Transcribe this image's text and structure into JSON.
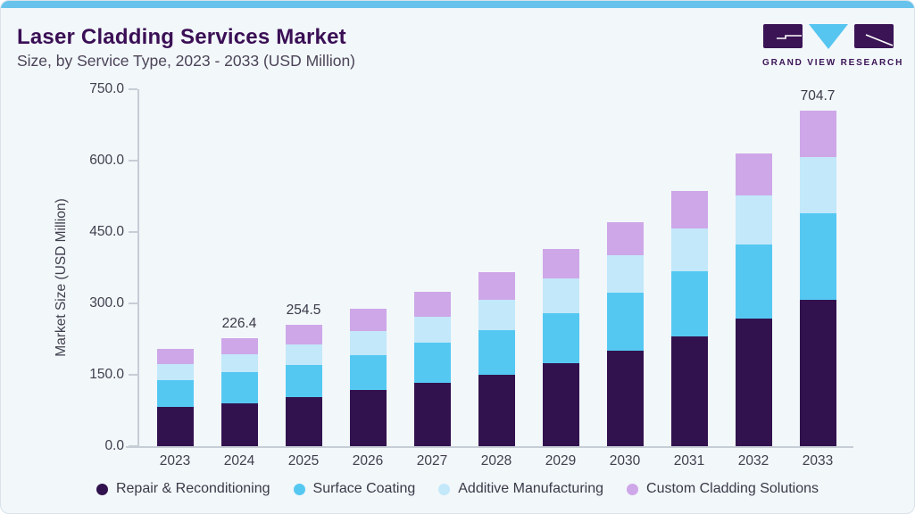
{
  "header": {
    "title": "Laser Cladding Services Market",
    "subtitle": "Size, by Service Type, 2023 - 2033 (USD Million)"
  },
  "logo": {
    "text": "GRAND VIEW RESEARCH"
  },
  "colors": {
    "accent_bar": "#67c3ec",
    "card_background": "#f2f7fa",
    "card_border": "#d9e2ea",
    "title_text": "#3a0f55",
    "subtitle_text": "#4b4458",
    "axis_text": "#3f3f4d",
    "axis_line": "#c7cdd5",
    "logo_purple": "#3a1455",
    "logo_blue": "#56c5f0"
  },
  "chart_data": {
    "type": "bar",
    "stacked": true,
    "title": "Laser Cladding Services Market Size, by Service Type, 2023 - 2033 (USD Million)",
    "xlabel": "",
    "ylabel": "Market Size (USD Million)",
    "ylim": [
      0,
      750
    ],
    "yticks": [
      "750.0",
      "600.0",
      "450.0",
      "300.0",
      "150.0",
      "0.0"
    ],
    "grid": false,
    "legend_position": "bottom",
    "categories": [
      "2023",
      "2024",
      "2025",
      "2026",
      "2027",
      "2028",
      "2029",
      "2030",
      "2031",
      "2032",
      "2033"
    ],
    "series": [
      {
        "name": "Repair & Reconditioning",
        "color": "#32124e",
        "values": [
          81.9,
          90.6,
          103.1,
          117.5,
          133.1,
          150.6,
          175.0,
          200.6,
          230.0,
          267.5,
          308.0
        ]
      },
      {
        "name": "Surface Coating",
        "color": "#55c8f2",
        "values": [
          57.4,
          64.4,
          67.5,
          73.8,
          84.4,
          93.7,
          104.4,
          121.3,
          137.5,
          156.3,
          181.3
        ]
      },
      {
        "name": "Additive Manufacturing",
        "color": "#c2e8fa",
        "values": [
          33.2,
          37.5,
          42.6,
          50.0,
          54.9,
          62.6,
          73.7,
          78.7,
          89.4,
          103.1,
          118.2
        ]
      },
      {
        "name": "Custom Cladding Solutions",
        "color": "#cea7e8",
        "values": [
          32.4,
          33.9,
          41.3,
          47.7,
          52.6,
          58.6,
          61.3,
          70.6,
          79.4,
          87.5,
          97.2
        ]
      }
    ],
    "totals": [
      204.9,
      226.4,
      254.5,
      289.0,
      325.0,
      365.5,
      414.4,
      471.2,
      536.3,
      614.4,
      704.7
    ],
    "bar_labels": [
      "",
      "226.4",
      "254.5",
      "",
      "",
      "",
      "",
      "",
      "",
      "",
      "704.7"
    ]
  }
}
